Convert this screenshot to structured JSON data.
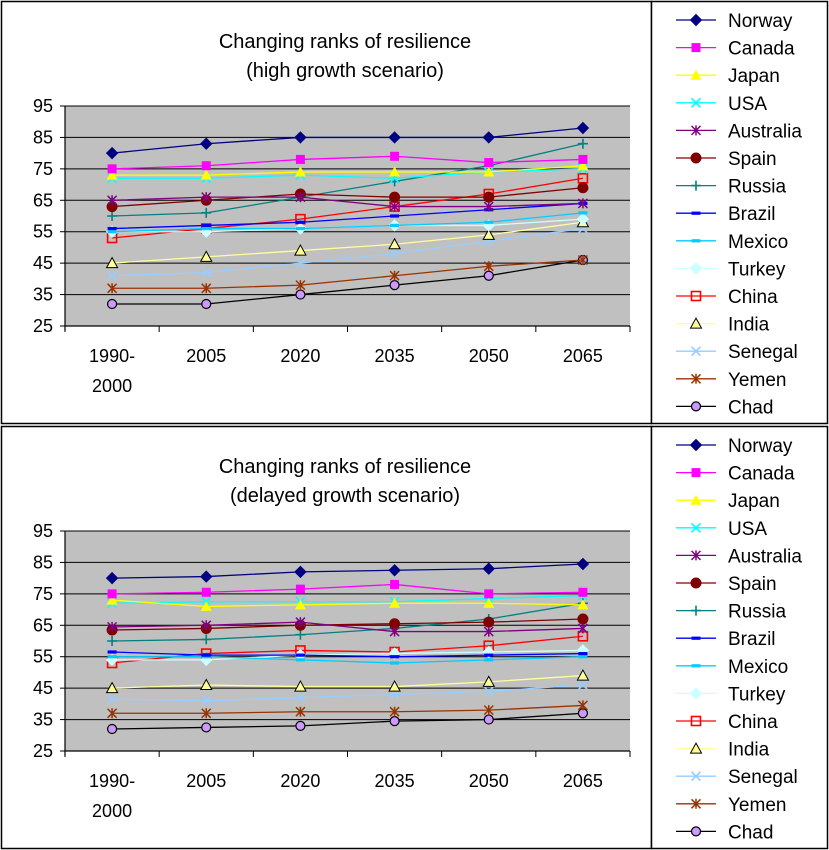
{
  "chart_data": [
    {
      "type": "line",
      "title": "Changing ranks of resilience",
      "subtitle": "(high growth scenario)",
      "categories": [
        "1990-2000",
        "2005",
        "2020",
        "2035",
        "2050",
        "2065"
      ],
      "category_lines": [
        [
          "1990-",
          "2000"
        ],
        [
          "2005"
        ],
        [
          "2020"
        ],
        [
          "2035"
        ],
        [
          "2050"
        ],
        [
          "2065"
        ]
      ],
      "ylim": [
        25,
        95
      ],
      "yticks": [
        25,
        35,
        45,
        55,
        65,
        75,
        85,
        95
      ],
      "grid": true,
      "plot_background": "#c0c0c0",
      "legend_position": "right",
      "series": [
        {
          "name": "Norway",
          "color": "#000080",
          "marker": "diamond",
          "values": [
            80,
            83,
            85,
            85,
            85,
            88
          ]
        },
        {
          "name": "Canada",
          "color": "#ff00ff",
          "marker": "square",
          "values": [
            75,
            76,
            78,
            79,
            77,
            78
          ]
        },
        {
          "name": "Japan",
          "color": "#ffff00",
          "marker": "triangle",
          "values": [
            73,
            73,
            74,
            74,
            74,
            76
          ]
        },
        {
          "name": "USA",
          "color": "#00ffff",
          "marker": "x",
          "values": [
            72,
            72,
            73,
            72,
            74,
            75
          ]
        },
        {
          "name": "Australia",
          "color": "#800080",
          "marker": "star",
          "values": [
            65,
            66,
            66,
            63,
            63,
            64
          ]
        },
        {
          "name": "Spain",
          "color": "#800000",
          "marker": "circle",
          "values": [
            63,
            65,
            67,
            66,
            66,
            69
          ]
        },
        {
          "name": "Russia",
          "color": "#008080",
          "marker": "plus",
          "values": [
            60,
            61,
            66,
            71,
            76,
            83
          ]
        },
        {
          "name": "Brazil",
          "color": "#0000ff",
          "marker": "dash",
          "values": [
            56,
            57,
            58,
            60,
            62,
            64
          ]
        },
        {
          "name": "Mexico",
          "color": "#00ccff",
          "marker": "dash",
          "values": [
            55,
            56,
            56,
            57,
            58,
            61
          ]
        },
        {
          "name": "Turkey",
          "color": "#ccffff",
          "marker": "diamond",
          "values": [
            55,
            55,
            56,
            57,
            57,
            59
          ]
        },
        {
          "name": "China",
          "color": "#ff0000",
          "marker": "square-open",
          "values": [
            53,
            56,
            59,
            63,
            67,
            72
          ]
        },
        {
          "name": "India",
          "color": "#ffff99",
          "marker": "triangle-open",
          "values": [
            45,
            47,
            49,
            51,
            54,
            58
          ]
        },
        {
          "name": "Senegal",
          "color": "#99ccff",
          "marker": "x",
          "values": [
            41,
            42,
            45,
            48,
            52,
            56
          ]
        },
        {
          "name": "Yemen",
          "color": "#993300",
          "marker": "star",
          "values": [
            37,
            37,
            38,
            41,
            44,
            46
          ]
        },
        {
          "name": "Chad",
          "color": "#000000",
          "marker": "circle-open",
          "values": [
            32,
            32,
            35,
            38,
            41,
            46
          ]
        }
      ]
    },
    {
      "type": "line",
      "title": "Changing ranks of resilience",
      "subtitle": "(delayed growth scenario)",
      "categories": [
        "1990-2000",
        "2005",
        "2020",
        "2035",
        "2050",
        "2065"
      ],
      "category_lines": [
        [
          "1990-",
          "2000"
        ],
        [
          "2005"
        ],
        [
          "2020"
        ],
        [
          "2035"
        ],
        [
          "2050"
        ],
        [
          "2065"
        ]
      ],
      "ylim": [
        25,
        95
      ],
      "yticks": [
        25,
        35,
        45,
        55,
        65,
        75,
        85,
        95
      ],
      "grid": true,
      "plot_background": "#c0c0c0",
      "legend_position": "right",
      "series": [
        {
          "name": "Norway",
          "color": "#000080",
          "marker": "diamond",
          "values": [
            80,
            80.5,
            82,
            82.5,
            83,
            84.5
          ]
        },
        {
          "name": "Canada",
          "color": "#ff00ff",
          "marker": "square",
          "values": [
            75,
            75.5,
            76.5,
            78,
            75,
            75.5
          ]
        },
        {
          "name": "Japan",
          "color": "#ffff00",
          "marker": "triangle",
          "values": [
            73,
            71,
            71.5,
            72,
            72,
            71.5
          ]
        },
        {
          "name": "USA",
          "color": "#00ffff",
          "marker": "x",
          "values": [
            72,
            72.5,
            72.5,
            72.5,
            73.5,
            74.5
          ]
        },
        {
          "name": "Australia",
          "color": "#800080",
          "marker": "star",
          "values": [
            64.5,
            65,
            66,
            63,
            63,
            64
          ]
        },
        {
          "name": "Spain",
          "color": "#800000",
          "marker": "circle",
          "values": [
            63.5,
            64,
            65,
            65.5,
            66,
            67
          ]
        },
        {
          "name": "Russia",
          "color": "#008080",
          "marker": "plus",
          "values": [
            60,
            60.5,
            62,
            64,
            67,
            72
          ]
        },
        {
          "name": "Brazil",
          "color": "#0000ff",
          "marker": "dash",
          "values": [
            56.5,
            55.5,
            55.5,
            55,
            55.5,
            56
          ]
        },
        {
          "name": "Mexico",
          "color": "#00ccff",
          "marker": "dash",
          "values": [
            55,
            55,
            54,
            53,
            54,
            55
          ]
        },
        {
          "name": "Turkey",
          "color": "#ccffff",
          "marker": "diamond",
          "values": [
            54,
            54,
            55.5,
            56,
            56.5,
            57
          ]
        },
        {
          "name": "China",
          "color": "#ff0000",
          "marker": "square-open",
          "values": [
            53,
            56,
            57,
            56.5,
            58.5,
            61.5
          ]
        },
        {
          "name": "India",
          "color": "#ffff99",
          "marker": "triangle-open",
          "values": [
            45,
            46,
            45.5,
            45.5,
            47,
            49
          ]
        },
        {
          "name": "Senegal",
          "color": "#99ccff",
          "marker": "x",
          "values": [
            41.5,
            41,
            42,
            43,
            44,
            46
          ]
        },
        {
          "name": "Yemen",
          "color": "#993300",
          "marker": "star",
          "values": [
            37,
            37,
            37.5,
            37.5,
            38,
            39.5
          ]
        },
        {
          "name": "Chad",
          "color": "#000000",
          "marker": "circle-open",
          "values": [
            32,
            32.5,
            33,
            34.5,
            35,
            37
          ]
        }
      ]
    }
  ]
}
